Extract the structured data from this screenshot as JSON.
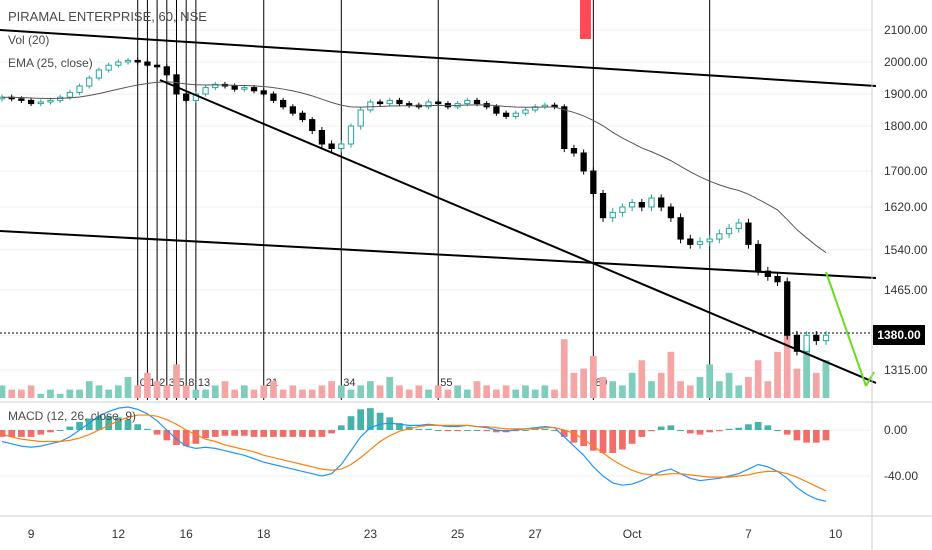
{
  "legend": {
    "symbol": "PIRAMAL ENTERPRISE, 60, NSE",
    "vol": "Vol (20)",
    "ema": "EMA (25, close)",
    "macd": "MACD (12, 26, close, 9)"
  },
  "last_price": "1380.00",
  "colors": {
    "up": "#26a69a",
    "down": "#000000",
    "vol_up": "#7fcdbb",
    "vol_down": "#f4a6a6",
    "macd_line": "#2196f3",
    "signal_line": "#ff7f0e",
    "hist_up": "#26a69a",
    "hist_down": "#ef5350",
    "projection": "#66dd22",
    "marker": "#ff4b55"
  },
  "chart_data": [
    {
      "type": "candlestick",
      "y_ticks": [
        "2100.00",
        "2000.00",
        "1900.00",
        "1800.00",
        "1700.00",
        "1620.00",
        "1540.00",
        "1465.00",
        "1380.00",
        "1315.00"
      ],
      "x_ticks": [
        "9",
        "12",
        "16",
        "18",
        "23",
        "25",
        "27",
        "Oct",
        "7",
        "10"
      ],
      "fib_labels": [
        "0",
        "1",
        "2",
        "3",
        "5",
        "8",
        "13",
        "21",
        "34",
        "55",
        "89"
      ],
      "close_series": [
        1890,
        1885,
        1880,
        1870,
        1875,
        1880,
        1890,
        1905,
        1925,
        1950,
        1975,
        1990,
        2000,
        2005,
        2000,
        1990,
        1985,
        1960,
        1900,
        1880,
        1900,
        1920,
        1930,
        1925,
        1915,
        1920,
        1910,
        1900,
        1880,
        1860,
        1840,
        1820,
        1790,
        1760,
        1750,
        1760,
        1800,
        1850,
        1875,
        1870,
        1880,
        1870,
        1865,
        1860,
        1875,
        1870,
        1860,
        1870,
        1880,
        1870,
        1860,
        1840,
        1830,
        1840,
        1850,
        1860,
        1865,
        1860,
        1750,
        1740,
        1700,
        1650,
        1600,
        1610,
        1620,
        1630,
        1620,
        1640,
        1620,
        1600,
        1560,
        1550,
        1555,
        1560,
        1570,
        1580,
        1590,
        1550,
        1500,
        1490,
        1480,
        1380,
        1350,
        1380,
        1370,
        1380
      ]
    },
    {
      "type": "bar",
      "name": "Vol (20)",
      "values": [
        3,
        2,
        2,
        3,
        1,
        2,
        1,
        2,
        2,
        4,
        3,
        2,
        3,
        5,
        3,
        6,
        4,
        3,
        8,
        3,
        2,
        2,
        3,
        4,
        2,
        3,
        2,
        3,
        4,
        2,
        3,
        2,
        2,
        3,
        4,
        3,
        2,
        3,
        4,
        3,
        5,
        3,
        2,
        3,
        2,
        3,
        2,
        3,
        2,
        4,
        3,
        2,
        3,
        2,
        3,
        2,
        3,
        2,
        14,
        6,
        7,
        10,
        5,
        4,
        3,
        6,
        9,
        4,
        6,
        11,
        4,
        3,
        5,
        8,
        4,
        6,
        3,
        5,
        9,
        4,
        11,
        15,
        7,
        12,
        6,
        9
      ]
    },
    {
      "type": "line",
      "name": "MACD (12, 26, close, 9)",
      "y_ticks": [
        "0.00",
        "-40.00"
      ],
      "macd": [
        -10,
        -12,
        -14,
        -15,
        -14,
        -12,
        -10,
        -6,
        0,
        6,
        12,
        16,
        19,
        20,
        18,
        14,
        8,
        0,
        -8,
        -14,
        -16,
        -15,
        -16,
        -18,
        -20,
        -22,
        -25,
        -28,
        -30,
        -32,
        -34,
        -36,
        -38,
        -40,
        -38,
        -30,
        -18,
        -6,
        2,
        5,
        6,
        5,
        4,
        4,
        5,
        4,
        3,
        3,
        4,
        3,
        2,
        0,
        -1,
        0,
        1,
        2,
        3,
        2,
        -6,
        -14,
        -22,
        -32,
        -40,
        -46,
        -48,
        -47,
        -44,
        -40,
        -36,
        -34,
        -38,
        -42,
        -44,
        -43,
        -42,
        -40,
        -38,
        -34,
        -30,
        -32,
        -36,
        -42,
        -50,
        -56,
        -60,
        -62
      ],
      "signal": [
        -4,
        -6,
        -8,
        -9,
        -10,
        -10,
        -10,
        -9,
        -7,
        -4,
        0,
        4,
        8,
        11,
        13,
        13,
        12,
        9,
        5,
        0,
        -4,
        -8,
        -10,
        -13,
        -15,
        -17,
        -19,
        -22,
        -24,
        -26,
        -28,
        -30,
        -32,
        -34,
        -35,
        -34,
        -30,
        -24,
        -17,
        -10,
        -5,
        -1,
        1,
        3,
        4,
        4,
        4,
        4,
        4,
        3,
        3,
        2,
        1,
        1,
        1,
        1,
        2,
        2,
        0,
        -3,
        -8,
        -14,
        -20,
        -26,
        -31,
        -35,
        -38,
        -39,
        -39,
        -38,
        -38,
        -39,
        -40,
        -41,
        -41,
        -41,
        -40,
        -39,
        -37,
        -36,
        -36,
        -38,
        -41,
        -45,
        -49,
        -53
      ],
      "histogram": [
        -6,
        -6,
        -6,
        -6,
        -4,
        -2,
        0,
        3,
        7,
        10,
        12,
        12,
        11,
        9,
        5,
        1,
        -4,
        -9,
        -13,
        -14,
        -12,
        -7,
        -6,
        -5,
        -5,
        -5,
        -6,
        -6,
        -6,
        -6,
        -6,
        -6,
        -6,
        -6,
        -3,
        4,
        12,
        18,
        19,
        15,
        11,
        6,
        3,
        1,
        1,
        0,
        -1,
        -1,
        0,
        0,
        -1,
        -2,
        -2,
        -1,
        0,
        1,
        1,
        0,
        -6,
        -11,
        -14,
        -18,
        -20,
        -20,
        -17,
        -12,
        -6,
        -1,
        3,
        4,
        0,
        -3,
        -4,
        -2,
        -1,
        1,
        2,
        5,
        7,
        4,
        0,
        -4,
        -9,
        -11,
        -11,
        -9
      ]
    }
  ]
}
